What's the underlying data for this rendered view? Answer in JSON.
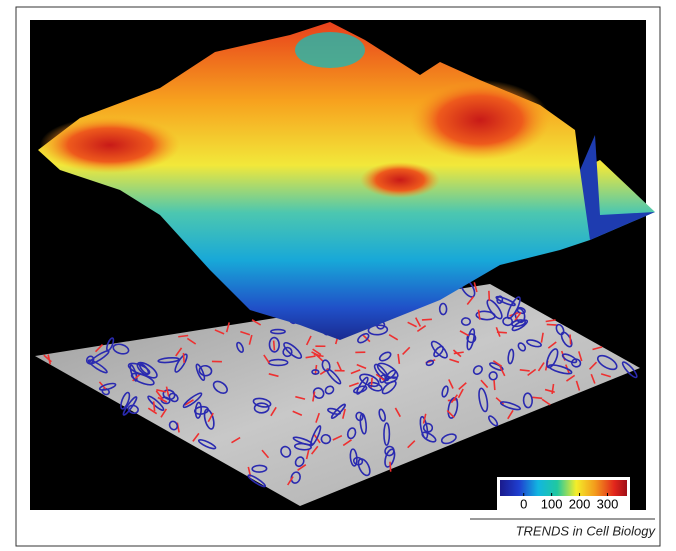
{
  "colorbar": {
    "lim": [
      -85,
      370
    ],
    "ticks": [
      0,
      100,
      200,
      300
    ]
  },
  "footer": {
    "source": "TRENDS in Cell Biology"
  }
}
